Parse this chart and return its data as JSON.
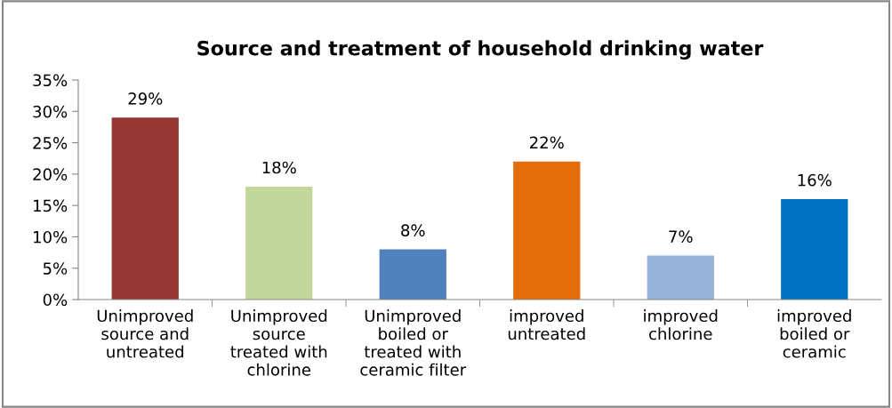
{
  "chart_data": {
    "type": "bar",
    "title": "Source and treatment of household drinking water",
    "categories": [
      "Unimproved\nsource and\nuntreated",
      "Unimproved\nsource\ntreated with\nchlorine",
      "Unimproved\nboiled or\ntreated with\nceramic filter",
      "improved\nuntreated",
      "improved\nchlorine",
      "improved\nboiled or\nceramic"
    ],
    "values": [
      29,
      18,
      8,
      22,
      7,
      16
    ],
    "value_labels": [
      "29%",
      "18%",
      "8%",
      "22%",
      "7%",
      "16%"
    ],
    "colors": [
      "#953735",
      "#c3d69b",
      "#4f81bd",
      "#e46c0a",
      "#95b3d7",
      "#0070c0"
    ],
    "ylim": [
      0,
      35
    ],
    "yticks": [
      {
        "value": 0,
        "label": "0%"
      },
      {
        "value": 5,
        "label": "5%"
      },
      {
        "value": 10,
        "label": "10%"
      },
      {
        "value": 15,
        "label": "15%"
      },
      {
        "value": 20,
        "label": "20%"
      },
      {
        "value": 25,
        "label": "25%"
      },
      {
        "value": 30,
        "label": "30%"
      },
      {
        "value": 35,
        "label": "35%"
      }
    ],
    "grid": false,
    "legend": false
  }
}
